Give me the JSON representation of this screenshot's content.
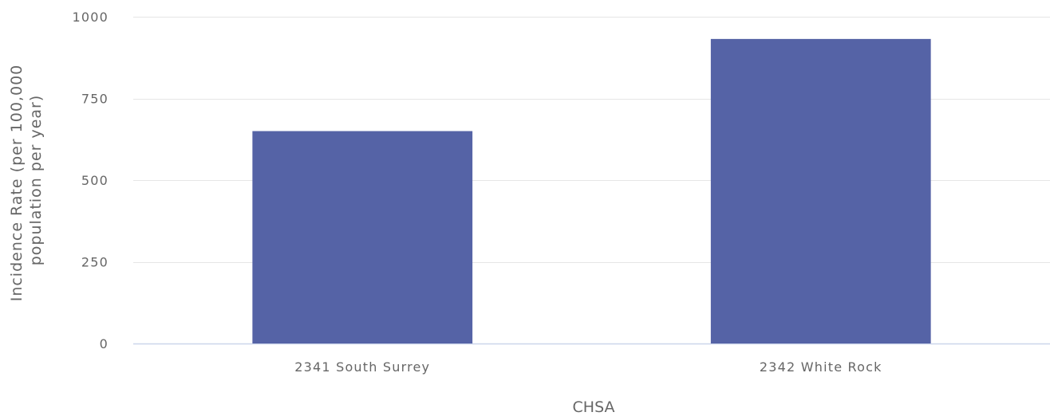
{
  "chart_data": {
    "type": "bar",
    "categories": [
      "2341 South Surrey",
      "2342 White Rock"
    ],
    "series": [
      {
        "values": [
          650,
          932
        ]
      }
    ],
    "xlabel": "CHSA",
    "ylabel_lines": [
      "Incidence Rate (per 100,000",
      "population per year)"
    ],
    "ylim": [
      0,
      1000
    ],
    "yticks": [
      0,
      250,
      500,
      750,
      1000
    ],
    "grid": true,
    "legend": "none",
    "colors": {
      "bar": "#5563a6",
      "grid": "#e6e6e6",
      "axis_line": "#ccd6eb",
      "text": "#666666"
    }
  }
}
